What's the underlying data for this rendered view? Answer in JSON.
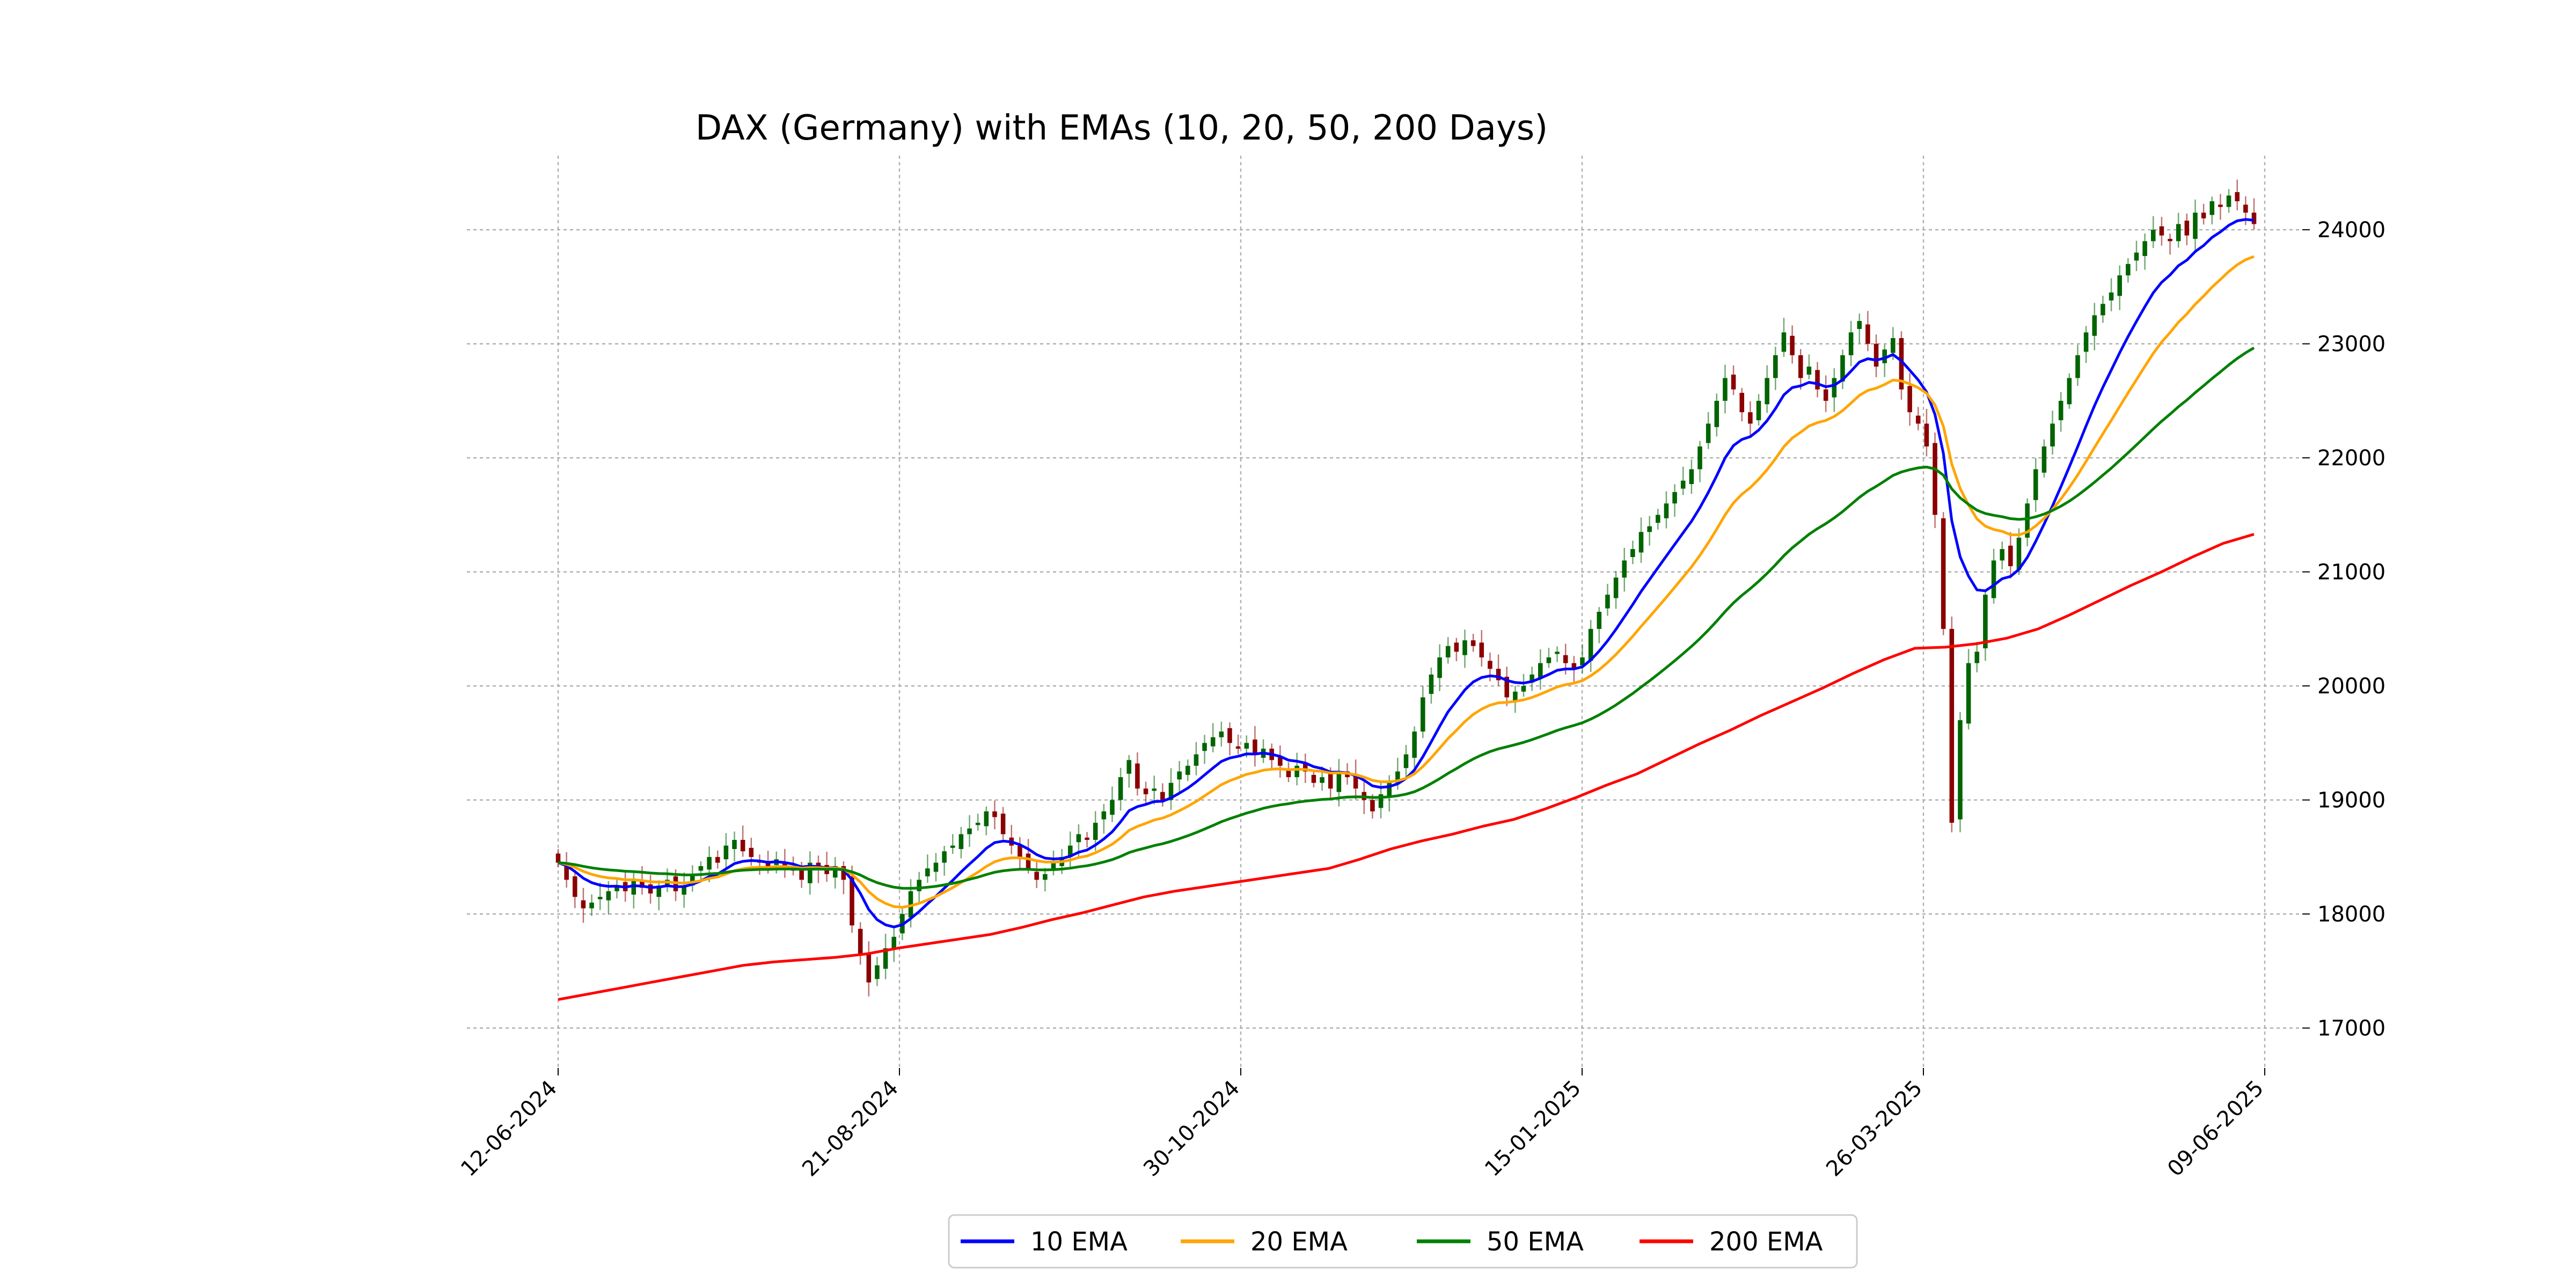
{
  "chart_data": {
    "type": "line",
    "title": "DAX (Germany) with EMAs (10, 20, 50, 200 Days)",
    "xlabel": "",
    "ylabel": "",
    "x_range": [
      "2024-06-12",
      "2025-06-09"
    ],
    "ylim": [
      16650,
      24650
    ],
    "yticks": [
      17000,
      18000,
      19000,
      20000,
      21000,
      22000,
      23000,
      24000
    ],
    "xticks": [
      "12-06-2024",
      "21-08-2024",
      "30-10-2024",
      "15-01-2025",
      "26-03-2025",
      "09-06-2025"
    ],
    "y_axis_side": "right",
    "grid": true,
    "legend_placement": "bottom-center",
    "candles": {
      "up_color": "#006400",
      "down_color": "#8b0000",
      "close": [
        18450,
        18300,
        18150,
        18050,
        18100,
        18150,
        18200,
        18250,
        18200,
        18300,
        18230,
        18180,
        18250,
        18300,
        18200,
        18250,
        18350,
        18420,
        18500,
        18450,
        18600,
        18650,
        18550,
        18500,
        18450,
        18400,
        18480,
        18420,
        18380,
        18300,
        18450,
        18400,
        18350,
        18420,
        18300,
        17900,
        17650,
        17400,
        17550,
        17700,
        17800,
        18000,
        18200,
        18300,
        18400,
        18450,
        18550,
        18600,
        18700,
        18750,
        18800,
        18900,
        18850,
        18700,
        18600,
        18500,
        18400,
        18300,
        18350,
        18450,
        18500,
        18600,
        18700,
        18650,
        18800,
        18900,
        19000,
        19200,
        19350,
        19100,
        19050,
        19100,
        19000,
        19150,
        19250,
        19300,
        19400,
        19500,
        19550,
        19600,
        19500,
        19450,
        19500,
        19400,
        19450,
        19350,
        19300,
        19200,
        19300,
        19250,
        19150,
        19200,
        19100,
        19250,
        19200,
        19100,
        19000,
        18900,
        19050,
        19150,
        19250,
        19400,
        19600,
        19900,
        20100,
        20250,
        20350,
        20300,
        20400,
        20350,
        20250,
        20150,
        20050,
        19900,
        19950,
        20000,
        20100,
        20200,
        20250,
        20300,
        20200,
        20150,
        20250,
        20500,
        20650,
        20800,
        20950,
        21100,
        21200,
        21350,
        21400,
        21500,
        21600,
        21700,
        21800,
        21900,
        22100,
        22300,
        22500,
        22700,
        22600,
        22400,
        22300,
        22500,
        22700,
        22900,
        23100,
        22900,
        22700,
        22800,
        22600,
        22500,
        22700,
        22900,
        23100,
        23200,
        23000,
        22800,
        22950,
        23050,
        22600,
        22400,
        22300,
        22100,
        21500,
        20500,
        18800,
        19700,
        20200,
        20300,
        20800,
        21100,
        21200,
        21050,
        21300,
        21600,
        21900,
        22100,
        22300,
        22500,
        22700,
        22900,
        23100,
        23250,
        23350,
        23450,
        23600,
        23700,
        23800,
        23900,
        24000,
        23950,
        23900,
        24050,
        23950,
        24150,
        24100,
        24250,
        24200,
        24300,
        24250,
        24150,
        24050
      ]
    },
    "series": [
      {
        "name": "10 EMA",
        "color": "#0000ff",
        "values": []
      },
      {
        "name": "20 EMA",
        "color": "#ffa500",
        "values": []
      },
      {
        "name": "50 EMA",
        "color": "#008000",
        "values": []
      },
      {
        "name": "200 EMA",
        "color": "#ff0000",
        "values": [
          17250,
          17300,
          17350,
          17400,
          17450,
          17500,
          17550,
          17580,
          17600,
          17620,
          17650,
          17700,
          17740,
          17780,
          17820,
          17880,
          17950,
          18010,
          18080,
          18150,
          18200,
          18240,
          18280,
          18320,
          18360,
          18400,
          18480,
          18570,
          18640,
          18700,
          18770,
          18830,
          18920,
          19020,
          19130,
          19230,
          19360,
          19490,
          19610,
          19740,
          19860,
          19980,
          20110,
          20230,
          20330,
          20340,
          20370,
          20420,
          20500,
          20620,
          20750,
          20880,
          21000,
          21130,
          21250,
          21330
        ]
      }
    ]
  }
}
